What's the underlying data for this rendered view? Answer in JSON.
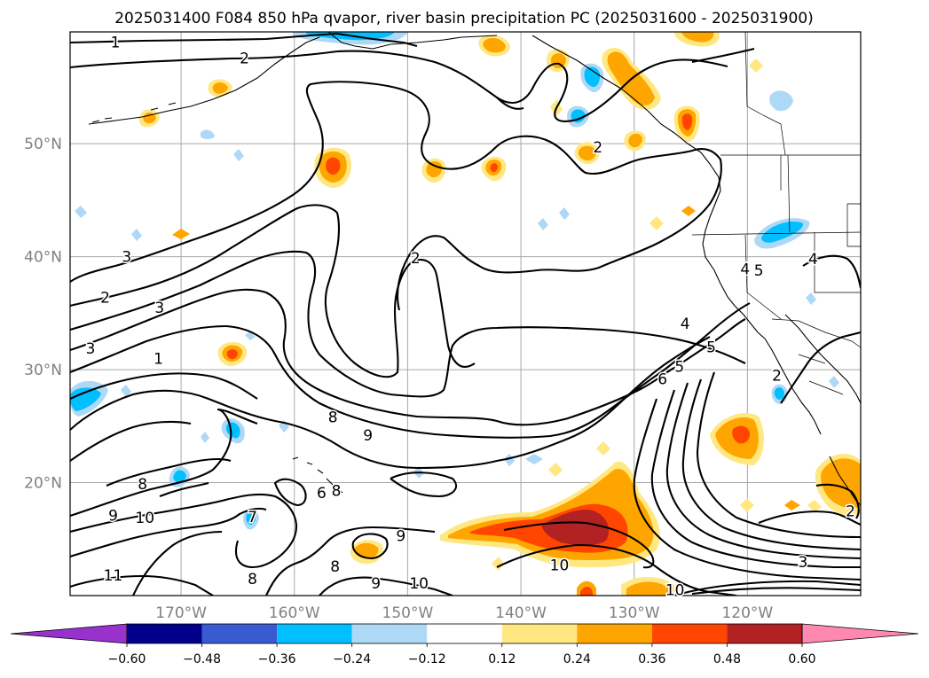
{
  "title": "2025031400 F084 850 hPa qvapor, river basin precipitation PC (2025031600 - 2025031900)",
  "chart_data": {
    "type": "contour-map",
    "title": "2025031400 F084 850 hPa qvapor, river basin precipitation PC (2025031600 - 2025031900)",
    "projection": "equirectangular",
    "lon_range": [
      -179.8,
      -110.0
    ],
    "lat_range": [
      10.0,
      59.9
    ],
    "grid": true,
    "lon_ticks": [
      -170,
      -160,
      -150,
      -140,
      -130,
      -120
    ],
    "lon_tick_labels": [
      "170°W",
      "160°W",
      "150°W",
      "140°W",
      "130°W",
      "120°W"
    ],
    "lat_ticks": [
      20,
      30,
      40,
      50
    ],
    "lat_tick_labels": [
      "20°N",
      "30°N",
      "40°N",
      "50°N"
    ],
    "contour_variable": "850 hPa qvapor",
    "contour_labels": [
      {
        "text": "1",
        "lon": -175.8,
        "lat": 59.0
      },
      {
        "text": "2",
        "lon": -164.4,
        "lat": 57.6
      },
      {
        "text": "3",
        "lon": -174.8,
        "lat": 40.0
      },
      {
        "text": "2",
        "lon": -176.7,
        "lat": 36.4
      },
      {
        "text": "3",
        "lon": -171.9,
        "lat": 35.5
      },
      {
        "text": "3",
        "lon": -178.0,
        "lat": 31.9
      },
      {
        "text": "1",
        "lon": -172.0,
        "lat": 31.0
      },
      {
        "text": "2",
        "lon": -149.3,
        "lat": 39.9
      },
      {
        "text": "2",
        "lon": -133.2,
        "lat": 49.7
      },
      {
        "text": "8",
        "lon": -173.4,
        "lat": 19.9
      },
      {
        "text": "9",
        "lon": -176.0,
        "lat": 17.1
      },
      {
        "text": "10",
        "lon": -173.2,
        "lat": 16.9
      },
      {
        "text": "11",
        "lon": -176.0,
        "lat": 11.8
      },
      {
        "text": "7",
        "lon": -163.7,
        "lat": 17.0
      },
      {
        "text": "8",
        "lon": -163.7,
        "lat": 11.5
      },
      {
        "text": "8",
        "lon": -156.4,
        "lat": 12.6
      },
      {
        "text": "9",
        "lon": -150.6,
        "lat": 15.3
      },
      {
        "text": "9",
        "lon": -152.8,
        "lat": 11.1
      },
      {
        "text": "10",
        "lon": -149.0,
        "lat": 11.1
      },
      {
        "text": "10",
        "lon": -136.6,
        "lat": 12.7
      },
      {
        "text": "8",
        "lon": -156.6,
        "lat": 25.8
      },
      {
        "text": "9",
        "lon": -153.5,
        "lat": 24.2
      },
      {
        "text": "6",
        "lon": -157.6,
        "lat": 19.1
      },
      {
        "text": "8",
        "lon": -156.3,
        "lat": 19.3
      },
      {
        "text": "4",
        "lon": -125.5,
        "lat": 34.1
      },
      {
        "text": "5",
        "lon": -123.2,
        "lat": 32.0
      },
      {
        "text": "6",
        "lon": -127.5,
        "lat": 29.2
      },
      {
        "text": "5",
        "lon": -126.0,
        "lat": 30.3
      },
      {
        "text": "4",
        "lon": -120.2,
        "lat": 38.9
      },
      {
        "text": "5",
        "lon": -119.0,
        "lat": 38.8
      },
      {
        "text": "4",
        "lon": -114.2,
        "lat": 39.8
      },
      {
        "text": "3",
        "lon": -115.1,
        "lat": 13.0
      },
      {
        "text": "10",
        "lon": -126.4,
        "lat": 10.5
      },
      {
        "text": "2",
        "lon": -110.9,
        "lat": 17.5
      },
      {
        "text": "2",
        "lon": -117.4,
        "lat": 29.5
      }
    ],
    "fill_variable": "river basin precipitation PC",
    "colorbar": {
      "levels": [
        -0.6,
        -0.48,
        -0.36,
        -0.24,
        -0.12,
        0.12,
        0.24,
        0.36,
        0.48,
        0.6
      ],
      "tick_labels": [
        "−0.60",
        "−0.48",
        "−0.36",
        "−0.24",
        "−0.12",
        "0.12",
        "0.24",
        "0.36",
        "0.48",
        "0.60"
      ],
      "colors": [
        "#9932cc",
        "#00008b",
        "#3a5bd0",
        "#00bfff",
        "#add8f6",
        "#ffffff",
        "#ffe882",
        "#ffa500",
        "#ff4500",
        "#b22222",
        "#ff88b0"
      ],
      "extend": "both"
    }
  }
}
